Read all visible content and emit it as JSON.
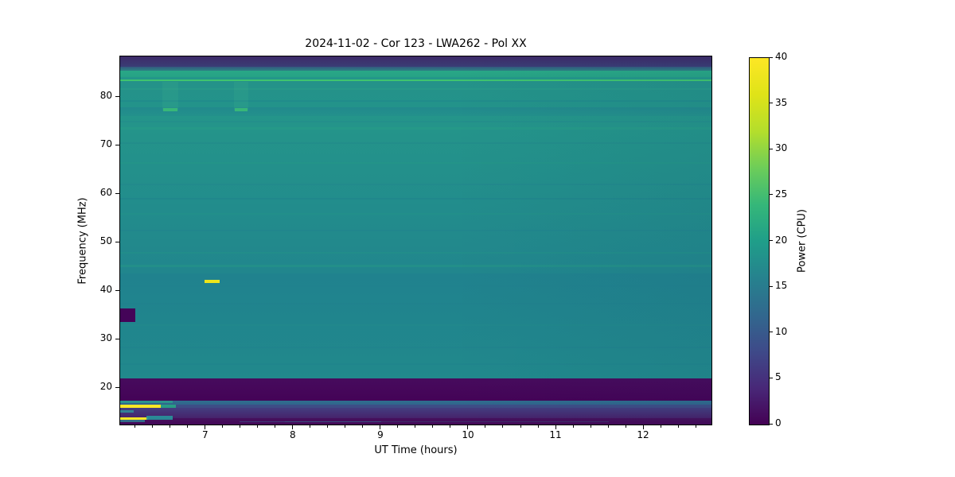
{
  "chart_data": {
    "type": "heatmap",
    "title": "2024-11-02 - Cor 123 - LWA262 - Pol XX",
    "xlabel": "UT Time (hours)",
    "ylabel": "Frequency (MHz)",
    "x_range": [
      6.02,
      12.79
    ],
    "x_ticks": [
      7,
      8,
      9,
      10,
      11,
      12
    ],
    "x_minor_step": 0.2,
    "y_range": [
      12.2,
      88.4
    ],
    "y_ticks": [
      20,
      30,
      40,
      50,
      60,
      70,
      80
    ],
    "grid": false,
    "colormap": "viridis",
    "colorbar": {
      "label": "Power (CPU)",
      "min": 0,
      "max": 40,
      "ticks": [
        0,
        5,
        10,
        15,
        20,
        25,
        30,
        35,
        40
      ],
      "stops": [
        [
          0,
          "#440154"
        ],
        [
          4,
          "#482878"
        ],
        [
          8,
          "#3e4a89"
        ],
        [
          12,
          "#31688e"
        ],
        [
          16,
          "#26828e"
        ],
        [
          20,
          "#1f9e89"
        ],
        [
          24,
          "#35b779"
        ],
        [
          28,
          "#6dcd59"
        ],
        [
          32,
          "#b4de2c"
        ],
        [
          36,
          "#dfe318"
        ],
        [
          40,
          "#fde725"
        ]
      ]
    },
    "bands": [
      {
        "name": "top-dark-band",
        "f": [
          88.4,
          86.2
        ],
        "c": [
          "#3d2a68",
          "#3a3f77"
        ]
      },
      {
        "name": "top-transition",
        "f": [
          86.2,
          85.4
        ],
        "c": [
          "#34597f",
          "#2b8a84"
        ]
      },
      {
        "name": "green-stripe-85",
        "f": [
          85.4,
          84.1
        ],
        "c": [
          "#29a886",
          "#26a185"
        ]
      },
      {
        "name": "teal-84",
        "f": [
          84.1,
          83.65
        ],
        "c": [
          "#249889",
          "#24938b"
        ]
      },
      {
        "name": "bright-line-83.5",
        "f": [
          83.65,
          83.25
        ],
        "c": [
          "#3fc46f",
          "#3fc46f"
        ]
      },
      {
        "name": "teal-78-83",
        "f": [
          83.25,
          77.9
        ],
        "c": [
          "#249289",
          "#23938a"
        ]
      },
      {
        "name": "teal-76-78",
        "f": [
          77.9,
          76.1
        ],
        "c": [
          "#22898d",
          "#23918b"
        ]
      },
      {
        "name": "main-body-44-76",
        "f": [
          76.1,
          43.6
        ],
        "c": [
          "#24958a",
          "#21868d"
        ]
      },
      {
        "name": "lower-body-22-44",
        "f": [
          43.6,
          22.0
        ],
        "c": [
          "#20828e",
          "#21898c"
        ]
      },
      {
        "name": "dark-rfi-band-18-22",
        "f": [
          22.0,
          17.5
        ],
        "c": [
          "#470b5d",
          "#440357"
        ]
      },
      {
        "name": "blue-stripe-17",
        "f": [
          17.5,
          16.55
        ],
        "c": [
          "#2e6f8e",
          "#32628c"
        ]
      },
      {
        "name": "blue-16",
        "f": [
          16.55,
          15.9
        ],
        "c": [
          "#3c5089",
          "#3f4a84"
        ]
      },
      {
        "name": "purple-14-16",
        "f": [
          15.9,
          13.9
        ],
        "c": [
          "#433e80",
          "#46226b"
        ]
      },
      {
        "name": "bottom-dark",
        "f": [
          13.9,
          12.2
        ],
        "c": [
          "#45115c",
          "#440457"
        ]
      }
    ],
    "stripes": [
      {
        "f": 81.6,
        "color": "#2aa487",
        "opacity": 0.35,
        "h": 2
      },
      {
        "f": 79.2,
        "color": "#1f7f8e",
        "opacity": 0.3,
        "h": 2
      },
      {
        "f": 75.0,
        "color": "#1f808e",
        "opacity": 0.25,
        "h": 2
      },
      {
        "f": 73.6,
        "color": "#27a285",
        "opacity": 0.35,
        "h": 3
      },
      {
        "f": 70.6,
        "color": "#20808d",
        "opacity": 0.25,
        "h": 2
      },
      {
        "f": 66.5,
        "color": "#26a185",
        "opacity": 0.22,
        "h": 2
      },
      {
        "f": 62.0,
        "color": "#1f7f8e",
        "opacity": 0.28,
        "h": 2
      },
      {
        "f": 59.0,
        "color": "#1f7c8e",
        "opacity": 0.3,
        "h": 2
      },
      {
        "f": 56.0,
        "color": "#259c86",
        "opacity": 0.22,
        "h": 2
      },
      {
        "f": 52.5,
        "color": "#207f8e",
        "opacity": 0.28,
        "h": 2
      },
      {
        "f": 48.0,
        "color": "#259a85",
        "opacity": 0.25,
        "h": 2
      },
      {
        "f": 45.2,
        "color": "#27a181",
        "opacity": 0.3,
        "h": 3
      },
      {
        "f": 41.0,
        "color": "#1f7e8e",
        "opacity": 0.25,
        "h": 2
      },
      {
        "f": 37.5,
        "color": "#1f7b8e",
        "opacity": 0.25,
        "h": 2
      },
      {
        "f": 33.0,
        "color": "#239188",
        "opacity": 0.22,
        "h": 2
      },
      {
        "f": 28.5,
        "color": "#1f7d8e",
        "opacity": 0.28,
        "h": 2
      },
      {
        "f": 25.0,
        "color": "#20798e",
        "opacity": 0.22,
        "h": 2
      }
    ],
    "features": [
      {
        "name": "rfi-blob-35mhz",
        "t": [
          6.02,
          6.19
        ],
        "f": [
          36.4,
          33.7
        ],
        "color": "#440458",
        "opacity": 1
      },
      {
        "name": "burst-dash-42mhz",
        "t": [
          6.98,
          7.16
        ],
        "f": [
          42.3,
          41.75
        ],
        "color": "#ece51b",
        "opacity": 1
      },
      {
        "name": "vertical-streak-1",
        "t": [
          6.5,
          6.68
        ],
        "f": [
          83.2,
          77.3
        ],
        "color": "#4fc08d",
        "opacity": 0.13
      },
      {
        "name": "vertical-streak-2",
        "t": [
          7.32,
          7.48
        ],
        "f": [
          83.2,
          77.3
        ],
        "color": "#4fc08d",
        "opacity": 0.13
      },
      {
        "name": "streak-1-dash-76mhz",
        "t": [
          6.51,
          6.67
        ],
        "f": [
          77.7,
          77.15
        ],
        "color": "#3cbd74",
        "opacity": 0.85
      },
      {
        "name": "streak-2-dash-76mhz",
        "t": [
          7.33,
          7.47
        ],
        "f": [
          77.7,
          77.15
        ],
        "color": "#3cbd74",
        "opacity": 0.85
      },
      {
        "name": "teal-segment-below-band",
        "t": [
          6.02,
          6.62
        ],
        "f": [
          17.5,
          16.95
        ],
        "color": "#2a9a8d",
        "opacity": 0.85
      },
      {
        "name": "yellow-rfi-line-16mhz",
        "t": [
          6.02,
          6.48
        ],
        "f": [
          16.55,
          16.05
        ],
        "color": "#fde725",
        "opacity": 1
      },
      {
        "name": "teal-ext-16mhz",
        "t": [
          6.48,
          6.66
        ],
        "f": [
          16.55,
          16.05
        ],
        "color": "#27a585",
        "opacity": 0.9
      },
      {
        "name": "teal-dash-15mhz",
        "t": [
          6.02,
          6.17
        ],
        "f": [
          15.45,
          15.0
        ],
        "color": "#2e8f9a",
        "opacity": 0.85
      },
      {
        "name": "yellow-rfi-line-13.7mhz",
        "t": [
          6.02,
          6.34
        ],
        "f": [
          13.95,
          13.5
        ],
        "color": "#fde725",
        "opacity": 1
      },
      {
        "name": "teal-block-14mhz",
        "t": [
          6.32,
          6.62
        ],
        "f": [
          14.25,
          13.55
        ],
        "color": "#27969b",
        "opacity": 0.9
      },
      {
        "name": "teal-dash-13.2mhz",
        "t": [
          6.02,
          6.3
        ],
        "f": [
          13.45,
          13.0
        ],
        "color": "#2d8a96",
        "opacity": 0.75
      },
      {
        "name": "faint-line-13mhz",
        "t": [
          7.38,
          9.0
        ],
        "f": [
          13.25,
          12.95
        ],
        "color": "#3a6292",
        "opacity": 0.55
      },
      {
        "name": "faint-line-13mhz-ext",
        "t": [
          7.9,
          11.6
        ],
        "f": [
          13.2,
          13.0
        ],
        "color": "#2d7a8e",
        "opacity": 0.3
      }
    ],
    "right_shading": {
      "color": "11,40,80",
      "max_opacity": 0.06
    }
  }
}
